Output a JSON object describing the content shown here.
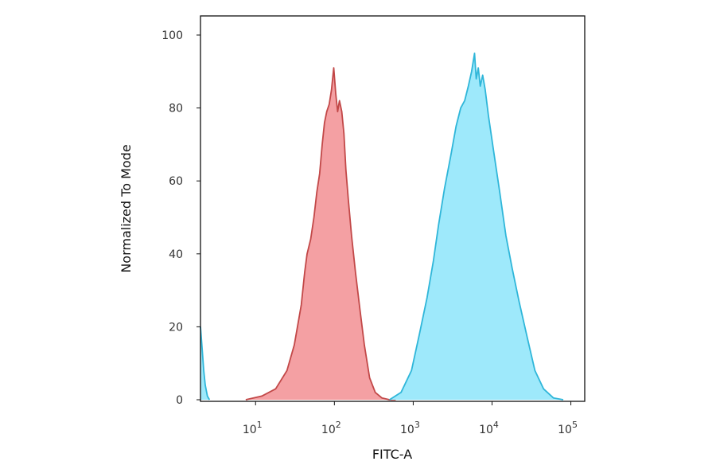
{
  "chart_data": {
    "type": "area",
    "title": "",
    "xlabel": "FITC-A",
    "ylabel": "Normalized To Mode",
    "x_scale": "log",
    "xlim": [
      2,
      150000
    ],
    "ylim": [
      0,
      100
    ],
    "grid": false,
    "x_ticks": [
      {
        "value": 10,
        "base": "10",
        "exp": "1"
      },
      {
        "value": 100,
        "base": "10",
        "exp": "2"
      },
      {
        "value": 1000,
        "base": "10",
        "exp": "3"
      },
      {
        "value": 10000,
        "base": "10",
        "exp": "4"
      },
      {
        "value": 100000,
        "base": "10",
        "exp": "5"
      }
    ],
    "y_ticks": [
      {
        "value": 0,
        "label": "0"
      },
      {
        "value": 20,
        "label": "20"
      },
      {
        "value": 40,
        "label": "40"
      },
      {
        "value": 60,
        "label": "60"
      },
      {
        "value": 80,
        "label": "80"
      },
      {
        "value": 100,
        "label": "100"
      }
    ],
    "series": [
      {
        "color_fill": "#f4a0a3",
        "color_line": "#c24848",
        "x": [
          7.5,
          12,
          18,
          25,
          31,
          38,
          42,
          45,
          50,
          55,
          60,
          65,
          70,
          75,
          80,
          86,
          92,
          98,
          104,
          110,
          116,
          124,
          132,
          140,
          150,
          165,
          185,
          210,
          240,
          280,
          330,
          400,
          500,
          600
        ],
        "y": [
          0,
          1,
          3,
          8,
          15,
          26,
          35,
          40,
          44,
          50,
          57,
          62,
          70,
          76,
          79,
          81,
          85,
          91,
          84,
          79,
          82,
          79,
          73,
          63,
          55,
          45,
          35,
          25,
          15,
          6,
          2,
          0.5,
          0,
          0
        ]
      },
      {
        "color_fill": "#9ee9fb",
        "color_line": "#2fb6d9",
        "x": [
          500,
          700,
          950,
          1200,
          1500,
          1800,
          2100,
          2500,
          3000,
          3500,
          4000,
          4500,
          5000,
          5500,
          6000,
          6300,
          6700,
          7100,
          7600,
          8200,
          9000,
          10500,
          12500,
          15000,
          18000,
          22000,
          28000,
          35000,
          45000,
          60000,
          80000
        ],
        "y": [
          0,
          2,
          8,
          18,
          28,
          38,
          48,
          58,
          67,
          75,
          80,
          82,
          86,
          90,
          95,
          88,
          91,
          86,
          89,
          85,
          78,
          68,
          57,
          45,
          36,
          27,
          17,
          8,
          3,
          0.5,
          0
        ]
      },
      {
        "color_fill": "#9ee9fb",
        "color_line": "#2fb6d9",
        "x": [
          2,
          2.1,
          2.2,
          2.3,
          2.45,
          2.6
        ],
        "y": [
          20,
          14,
          8,
          4,
          1,
          0
        ]
      }
    ]
  }
}
